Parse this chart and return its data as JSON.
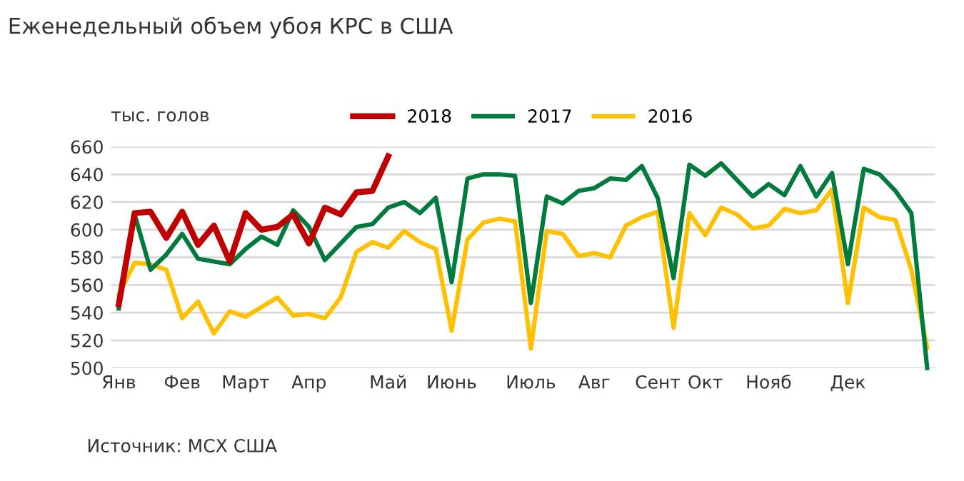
{
  "chart_data": {
    "type": "line",
    "title": "Еженедельный объем убоя КРС в США",
    "ylabel": "тыс. голов",
    "categories": [
      "Янв",
      null,
      null,
      null,
      "Фев",
      null,
      null,
      null,
      "Март",
      null,
      null,
      null,
      "Апр",
      null,
      null,
      null,
      null,
      "Май",
      null,
      null,
      null,
      "Июнь",
      null,
      null,
      null,
      null,
      "Июль",
      null,
      null,
      null,
      "Авг",
      null,
      null,
      null,
      "Сент",
      null,
      null,
      "Окт",
      null,
      null,
      null,
      "Нояб",
      null,
      null,
      null,
      null,
      "Дек",
      null,
      null,
      null,
      null,
      null
    ],
    "series": [
      {
        "name": "2018",
        "color": "#c00000",
        "values": [
          546,
          612,
          613,
          594,
          613,
          589,
          603,
          577,
          612,
          600,
          602,
          611,
          590,
          616,
          611,
          627,
          628,
          653,
          null,
          null,
          null,
          null,
          null,
          null,
          null,
          null,
          null,
          null,
          null,
          null,
          null,
          null,
          null,
          null,
          null,
          null,
          null,
          null,
          null,
          null,
          null,
          null,
          null,
          null,
          null,
          null,
          null,
          null,
          null,
          null,
          null,
          null
        ]
      },
      {
        "name": "2017",
        "color": "#007a3d",
        "values": [
          543,
          611,
          571,
          582,
          597,
          579,
          577,
          575,
          586,
          595,
          589,
          614,
          602,
          578,
          590,
          602,
          604,
          616,
          620,
          612,
          623,
          562,
          637,
          640,
          640,
          639,
          547,
          624,
          619,
          628,
          630,
          637,
          636,
          646,
          623,
          565,
          647,
          639,
          648,
          636,
          624,
          633,
          625,
          646,
          624,
          641,
          575,
          644,
          640,
          628,
          612,
          500
        ]
      },
      {
        "name": "2016",
        "color": "#ffc000",
        "values": [
          553,
          576,
          575,
          571,
          536,
          548,
          525,
          541,
          537,
          544,
          551,
          538,
          539,
          536,
          551,
          584,
          591,
          587,
          599,
          591,
          586,
          527,
          593,
          605,
          608,
          606,
          514,
          599,
          597,
          581,
          583,
          580,
          603,
          609,
          613,
          529,
          612,
          596,
          616,
          611,
          601,
          603,
          615,
          612,
          614,
          629,
          547,
          616,
          609,
          607,
          571,
          515
        ]
      }
    ],
    "ylim": [
      500,
      660
    ],
    "yticks": [
      500,
      520,
      540,
      560,
      580,
      600,
      620,
      640,
      660
    ],
    "grid": "y",
    "legend": "top",
    "marker": "none",
    "line_style": "solid",
    "annotations": [
      "Источник: МСХ США"
    ]
  }
}
